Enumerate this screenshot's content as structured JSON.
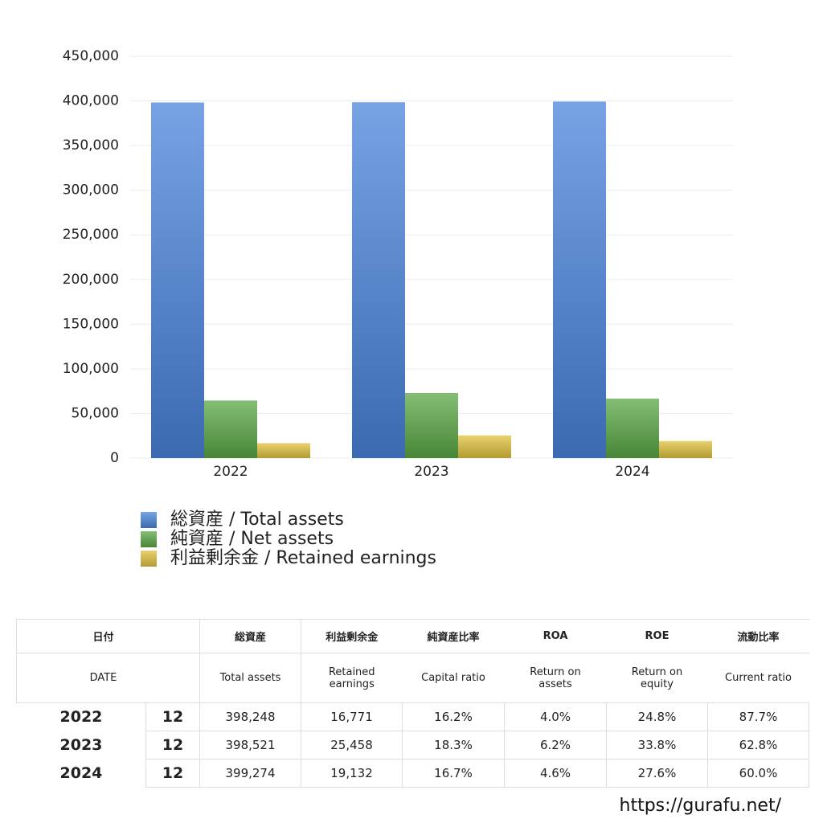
{
  "chart_data": {
    "type": "bar",
    "categories": [
      "2022",
      "2023",
      "2024"
    ],
    "series": [
      {
        "name": "総資産 / Total assets",
        "color": "#4a84dc",
        "values": [
          398248,
          398521,
          399274
        ]
      },
      {
        "name": "純資産 / Net assets",
        "color": "#5aa845",
        "values": [
          64500,
          72900,
          66700
        ]
      },
      {
        "name": "利益剰余金 / Retained earnings",
        "color": "#e0c23f",
        "values": [
          16771,
          25458,
          19132
        ]
      }
    ],
    "ylim": [
      0,
      450000
    ],
    "yticks": [
      0,
      {
        "value": 50000,
        "label": "50,000"
      },
      {
        "value": 100000,
        "label": "100,000"
      },
      {
        "value": 150000,
        "label": "150,000"
      },
      {
        "value": 200000,
        "label": "200,000"
      },
      {
        "value": 250000,
        "label": "250,000"
      },
      {
        "value": 300000,
        "label": "300,000"
      },
      {
        "value": 350000,
        "label": "350,000"
      },
      {
        "value": 400000,
        "label": "400,000"
      },
      {
        "value": 450000,
        "label": "450,000"
      }
    ],
    "grid": true
  },
  "table": {
    "header_ja": [
      "日付",
      "総資産",
      "利益剰余金",
      "純資産比率",
      "ROA",
      "ROE",
      "流動比率"
    ],
    "header_en": [
      "DATE",
      "Total assets",
      "Retained earnings",
      "Capital ratio",
      "Return on assets",
      "Return on equity",
      "Current ratio"
    ],
    "rows": [
      [
        "2022",
        "12",
        "398,248",
        "16,771",
        "16.2%",
        "4.0%",
        "24.8%",
        "87.7%"
      ],
      [
        "2023",
        "12",
        "398,521",
        "25,458",
        "18.3%",
        "6.2%",
        "33.8%",
        "62.8%"
      ],
      [
        "2024",
        "12",
        "399,274",
        "19,132",
        "16.7%",
        "4.6%",
        "27.6%",
        "60.0%"
      ]
    ]
  },
  "footer": "https://gurafu.net/"
}
